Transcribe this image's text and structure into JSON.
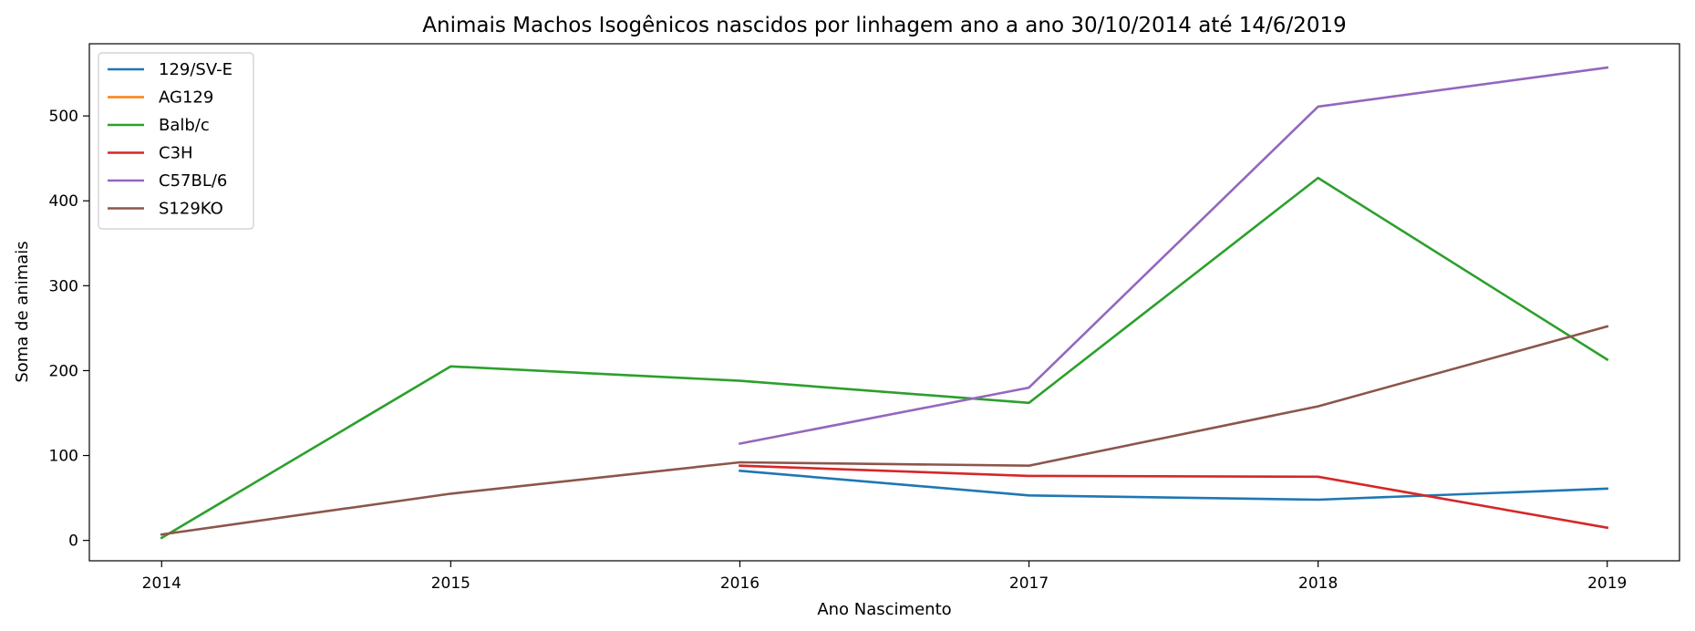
{
  "chart_data": {
    "type": "line",
    "title": "Animais Machos Isogênicos nascidos por linhagem ano a ano 30/10/2014 até 14/6/2019",
    "xlabel": "Ano Nascimento",
    "ylabel": "Soma de animais",
    "xlim": [
      2013.75,
      2019.25
    ],
    "ylim": [
      -24,
      585
    ],
    "xticks": [
      2014,
      2015,
      2016,
      2017,
      2018,
      2019
    ],
    "yticks": [
      0,
      100,
      200,
      300,
      400,
      500
    ],
    "grid": false,
    "legend_position": "top-left",
    "series": [
      {
        "name": "129/SV-E",
        "color": "#1f77b4",
        "points": [
          [
            2016,
            82
          ],
          [
            2017,
            53
          ],
          [
            2018,
            48
          ],
          [
            2019,
            61
          ]
        ]
      },
      {
        "name": "AG129",
        "color": "#ff7f0e",
        "points": []
      },
      {
        "name": "Balb/c",
        "color": "#2ca02c",
        "points": [
          [
            2014,
            3
          ],
          [
            2015,
            205
          ],
          [
            2016,
            188
          ],
          [
            2017,
            162
          ],
          [
            2018,
            427
          ],
          [
            2019,
            213
          ]
        ]
      },
      {
        "name": "C3H",
        "color": "#d62728",
        "points": [
          [
            2016,
            88
          ],
          [
            2017,
            76
          ],
          [
            2018,
            75
          ],
          [
            2019,
            15
          ]
        ]
      },
      {
        "name": "C57BL/6",
        "color": "#9467bd",
        "points": [
          [
            2016,
            114
          ],
          [
            2017,
            180
          ],
          [
            2018,
            511
          ],
          [
            2019,
            557
          ]
        ]
      },
      {
        "name": "S129KO",
        "color": "#8c564b",
        "points": [
          [
            2014,
            7
          ],
          [
            2015,
            55
          ],
          [
            2016,
            92
          ],
          [
            2017,
            88
          ],
          [
            2018,
            158
          ],
          [
            2019,
            252
          ]
        ]
      }
    ]
  }
}
